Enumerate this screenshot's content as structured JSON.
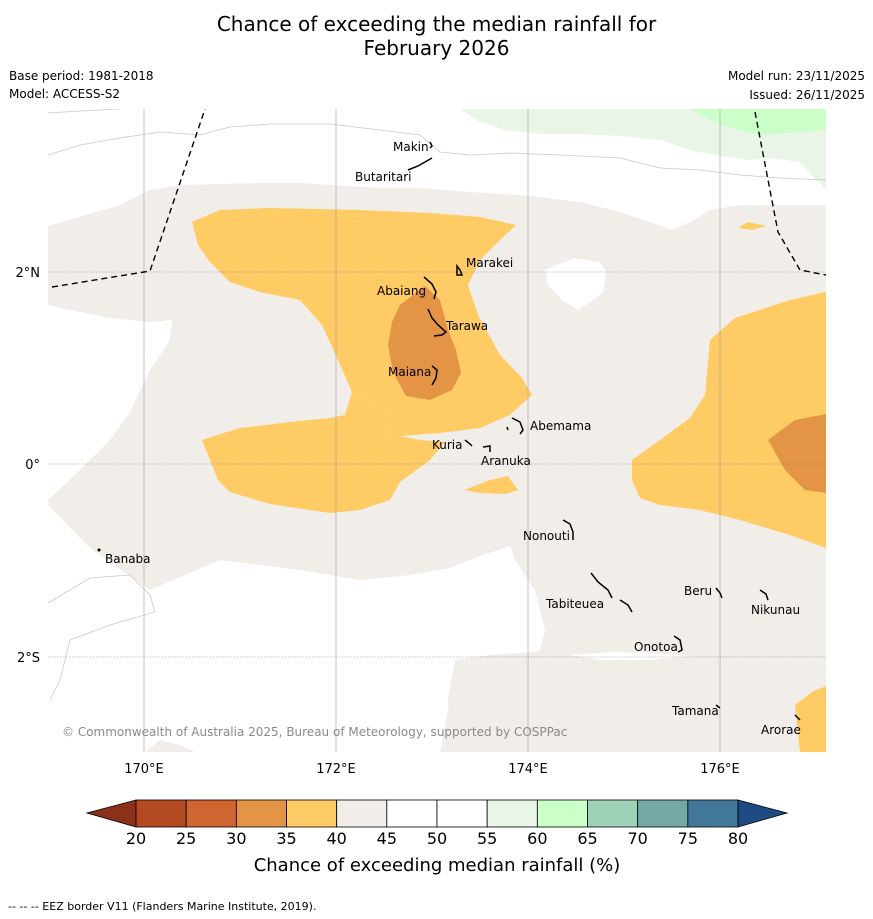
{
  "title_line1": "Chance of exceeding the median rainfall for",
  "title_line2": "February 2026",
  "base_period": "Base period: 1981-2018",
  "model": "Model: ACCESS-S2",
  "model_run": "Model run: 23/11/2025",
  "issued": "Issued: 26/11/2025",
  "copyright": "© Commonwealth of Australia 2025, Bureau of Meteorology, supported by COSPPac",
  "map": {
    "lat_labels": [
      "2°N",
      "0°",
      "2°S"
    ],
    "lon_labels": [
      "170°E",
      "172°E",
      "174°E",
      "176°E"
    ],
    "places": [
      "Makin",
      "Butaritari",
      "Marakei",
      "Abaiang",
      "Tarawa",
      "Maiana",
      "Abemama",
      "Kuria",
      "Aranuka",
      "Banaba",
      "Nonouti",
      "Tabiteuea",
      "Beru",
      "Nikunau",
      "Onotoa",
      "Tamana",
      "Arorae"
    ]
  },
  "colorbar": {
    "ticks": [
      "20",
      "25",
      "30",
      "35",
      "40",
      "45",
      "50",
      "55",
      "60",
      "65",
      "70",
      "75",
      "80"
    ],
    "colors": [
      "#b34a22",
      "#cf6530",
      "#e39444",
      "#fecb65",
      "#f1ede8",
      "#ffffff",
      "#ffffff",
      "#e9f5e6",
      "#caffca",
      "#9dd2b8",
      "#74a8a6",
      "#417798"
    ],
    "under_color": "#8c3119",
    "over_color": "#1d4b82",
    "label": "Chance of exceeding median rainfall (%)"
  },
  "legend_footnote": "--  --  -- EEZ border V11 (Flanders Marine Institute, 2019)."
}
